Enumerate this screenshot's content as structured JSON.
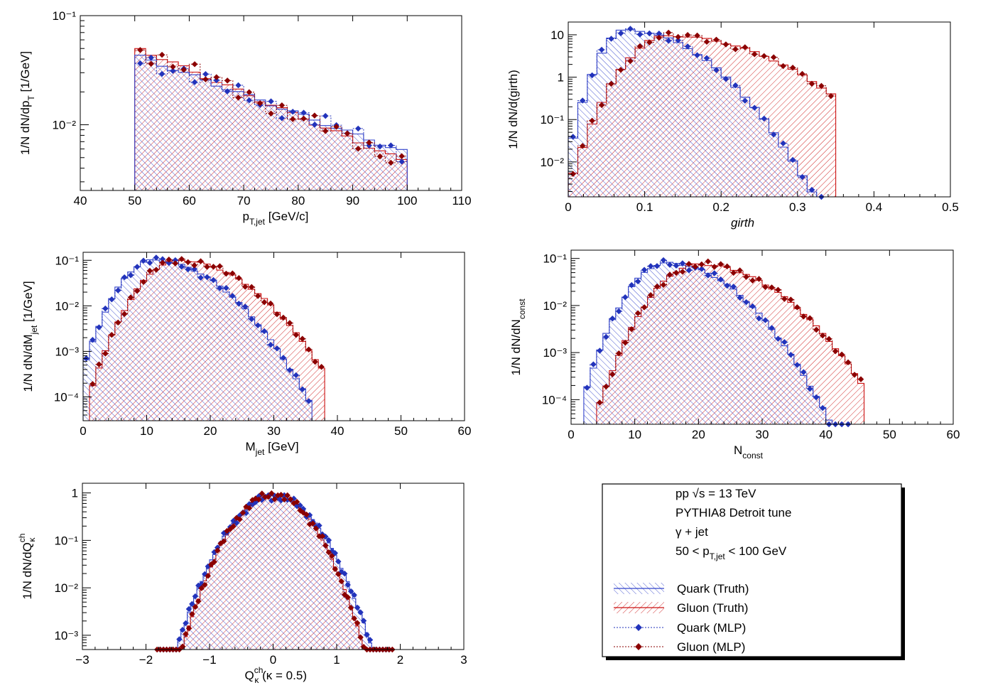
{
  "colors": {
    "quark": "#3344cc",
    "gluon": "#cc1111",
    "quark_mlp": "#2233bb",
    "gluon_mlp": "#8b0000"
  },
  "legend": {
    "lines": [
      "pp  √s = 13 TeV",
      "PYTHIA8 Detroit tune",
      "γ + jet"
    ],
    "range": {
      "prefix": "50 < p",
      "sub": "T,jet",
      "suffix": " < 100 GeV"
    },
    "entries": [
      "Quark (Truth)",
      "Gluon (Truth)",
      "Quark (MLP)",
      "Gluon (MLP)"
    ]
  },
  "chart_data": [
    {
      "id": "pt",
      "type": "histogram",
      "logy": true,
      "xlabel": {
        "main": "p",
        "sub": "T,jet",
        "rest": " [GeV/c]"
      },
      "ylabel": {
        "pre": "1/N dN/dp",
        "sub": "T",
        "post": " [1/GeV]"
      },
      "xlim": [
        40,
        110
      ],
      "ylim": [
        0.0025,
        0.1
      ],
      "xticks": [
        40,
        50,
        60,
        70,
        80,
        90,
        100,
        110
      ],
      "xticklabels": [
        "40",
        "50",
        "60",
        "70",
        "80",
        "90",
        "100",
        "110"
      ],
      "yticks": [
        0.1,
        0.01
      ],
      "yticklabels": [
        "10⁻¹",
        "10⁻²"
      ],
      "bins": {
        "lo": 40,
        "hi": 110,
        "step": 2
      },
      "quark": {
        "range": [
          50,
          100
        ],
        "peak": 0.0435,
        "end": 0.0055
      },
      "gluon": {
        "range": [
          50,
          100
        ],
        "peak": 0.052,
        "end": 0.0045
      }
    },
    {
      "id": "girth",
      "type": "histogram",
      "logy": true,
      "xlabel": {
        "main": "girth",
        "italic": true
      },
      "ylabel": {
        "pre": "1/N dN/d(girth)"
      },
      "xlim": [
        0,
        0.5
      ],
      "ylim": [
        0.0015,
        20
      ],
      "xticks": [
        0,
        0.1,
        0.2,
        0.3,
        0.4,
        0.5
      ],
      "xticklabels": [
        "0",
        "0.1",
        "0.2",
        "0.3",
        "0.4",
        "0.5"
      ],
      "yticks": [
        10,
        1,
        0.1,
        0.01
      ],
      "yticklabels": [
        "10",
        "1",
        "10⁻¹",
        "10⁻²"
      ],
      "bins": {
        "lo": 0,
        "hi": 0.5,
        "step": 0.0125
      },
      "quark": {
        "range": [
          0,
          0.3375
        ],
        "peak": 13,
        "mu": 0.075,
        "sl": 0.02,
        "sr": 0.058
      },
      "gluon": {
        "range": [
          0,
          0.35
        ],
        "peak": 9.5,
        "mu": 0.13,
        "sl": 0.032,
        "sr": 0.085
      }
    },
    {
      "id": "mass",
      "type": "histogram",
      "logy": true,
      "xlabel": {
        "main": "M",
        "sub": "jet",
        "rest": " [GeV]"
      },
      "ylabel": {
        "pre": "1/N dN/dM",
        "sub": "jet",
        "post": " [1/GeV]"
      },
      "xlim": [
        0,
        60
      ],
      "ylim": [
        3e-05,
        0.15
      ],
      "xticks": [
        0,
        10,
        20,
        30,
        40,
        50,
        60
      ],
      "xticklabels": [
        "0",
        "10",
        "20",
        "30",
        "40",
        "50",
        "60"
      ],
      "yticks": [
        0.1,
        0.01,
        0.001,
        0.0001
      ],
      "yticklabels": [
        "10⁻¹",
        "10⁻²",
        "10⁻³",
        "10⁻⁴"
      ],
      "bins": {
        "lo": 0,
        "hi": 60,
        "step": 1
      },
      "quark": {
        "range": [
          0,
          36
        ],
        "peak": 0.1,
        "mu": 11,
        "sl": 3.3,
        "sr": 6.5
      },
      "gluon": {
        "range": [
          1,
          38
        ],
        "peak": 0.1,
        "mu": 15,
        "sl": 3.8,
        "sr": 6.8
      }
    },
    {
      "id": "nconst",
      "type": "histogram",
      "logy": true,
      "xlabel": {
        "main": "N",
        "sub": "const"
      },
      "ylabel": {
        "pre": "1/N dN/dN",
        "sub": "const"
      },
      "xlim": [
        0,
        60
      ],
      "ylim": [
        3e-05,
        0.15
      ],
      "xticks": [
        0,
        10,
        20,
        30,
        40,
        50,
        60
      ],
      "xticklabels": [
        "0",
        "10",
        "20",
        "30",
        "40",
        "50",
        "60"
      ],
      "yticks": [
        0.1,
        0.01,
        0.001,
        0.0001
      ],
      "yticklabels": [
        "10⁻¹",
        "10⁻²",
        "10⁻³",
        "10⁻⁴"
      ],
      "bins": {
        "lo": 0,
        "hi": 60,
        "step": 1
      },
      "quark": {
        "range": [
          2,
          44
        ],
        "peak": 0.08,
        "mu": 15,
        "sl": 3.6,
        "sr": 6.5
      },
      "gluon": {
        "range": [
          4,
          46
        ],
        "peak": 0.075,
        "mu": 20,
        "sl": 4.2,
        "sr": 7.5
      }
    },
    {
      "id": "charge",
      "type": "histogram",
      "logy": true,
      "xlabel": {
        "main": "Q",
        "sup": "ch",
        "sub": "κ",
        "rest": " (κ = 0.5)"
      },
      "ylabel": {
        "pre": "1/N dN/dQ",
        "sup": "ch",
        "sub": "κ"
      },
      "xlim": [
        -3,
        3
      ],
      "ylim": [
        0.0005,
        1.6
      ],
      "xticks": [
        -3,
        -2,
        -1,
        0,
        1,
        2,
        3
      ],
      "xticklabels": [
        "−3",
        "−2",
        "−1",
        "0",
        "1",
        "2",
        "3"
      ],
      "yticks": [
        1,
        0.1,
        0.01,
        0.001
      ],
      "yticklabels": [
        "1",
        "10⁻¹",
        "10⁻²",
        "10⁻³"
      ],
      "bins": {
        "lo": -3,
        "hi": 3,
        "step": 0.05
      },
      "quark": {
        "range": [
          -1.8,
          1.85
        ],
        "peak": 0.85,
        "mu": 0.02,
        "sl": 0.4,
        "sr": 0.4
      },
      "gluon": {
        "range": [
          -1.85,
          1.9
        ],
        "peak": 0.92,
        "mu": 0.0,
        "sl": 0.37,
        "sr": 0.37
      }
    }
  ]
}
